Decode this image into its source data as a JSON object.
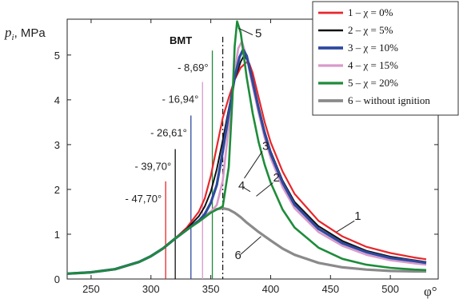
{
  "chart_data": {
    "type": "line",
    "xlabel": "φ°",
    "ylabel_main": "p",
    "ylabel_sub": "i",
    "ylabel_unit": ", MPa",
    "xlim": [
      230,
      540
    ],
    "ylim": [
      0,
      5.8
    ],
    "xticks": [
      250,
      300,
      350,
      400,
      450,
      500
    ],
    "yticks": [
      0,
      1,
      2,
      3,
      4,
      5
    ],
    "xtick_labels": [
      "250",
      "300",
      "350",
      "400",
      "450",
      "500"
    ],
    "ytick_labels": [
      "0",
      "1",
      "2",
      "3",
      "4",
      "5"
    ],
    "bmt_label": "BMT",
    "bmt_x": 360,
    "legend_position": "top-right",
    "series": [
      {
        "id": "1",
        "legend": "1 – χ = 0%",
        "color": "#e8262b",
        "x": [
          230,
          250,
          270,
          290,
          300,
          310,
          320,
          330,
          340,
          345,
          350,
          355,
          360,
          365,
          370,
          375,
          380,
          382,
          385,
          390,
          395,
          400,
          410,
          420,
          440,
          460,
          480,
          500,
          520,
          530
        ],
        "y": [
          0.12,
          0.15,
          0.22,
          0.38,
          0.51,
          0.68,
          0.9,
          1.15,
          1.5,
          1.8,
          2.3,
          2.95,
          3.6,
          4.05,
          4.45,
          4.72,
          4.84,
          4.82,
          4.6,
          4.05,
          3.5,
          3.05,
          2.4,
          1.9,
          1.3,
          0.95,
          0.72,
          0.58,
          0.48,
          0.44
        ]
      },
      {
        "id": "2",
        "legend": "2 – χ = 5%",
        "color": "#111111",
        "x": [
          230,
          250,
          270,
          290,
          300,
          310,
          320,
          330,
          340,
          345,
          350,
          355,
          360,
          365,
          370,
          375,
          378,
          382,
          385,
          390,
          395,
          400,
          410,
          420,
          440,
          460,
          480,
          500,
          520,
          530
        ],
        "y": [
          0.12,
          0.15,
          0.22,
          0.38,
          0.51,
          0.68,
          0.9,
          1.12,
          1.4,
          1.62,
          1.95,
          2.45,
          3.1,
          3.8,
          4.45,
          4.85,
          5.0,
          4.8,
          4.45,
          3.85,
          3.3,
          2.85,
          2.2,
          1.72,
          1.18,
          0.85,
          0.63,
          0.5,
          0.42,
          0.38
        ]
      },
      {
        "id": "3",
        "legend": "3 – χ = 10%",
        "color": "#2e4a9e",
        "x": [
          230,
          250,
          270,
          290,
          300,
          310,
          320,
          330,
          340,
          345,
          350,
          355,
          360,
          365,
          370,
          374,
          377,
          380,
          385,
          390,
          395,
          400,
          410,
          420,
          440,
          460,
          480,
          500,
          520,
          530
        ],
        "y": [
          0.12,
          0.15,
          0.22,
          0.38,
          0.51,
          0.68,
          0.9,
          1.1,
          1.3,
          1.45,
          1.7,
          2.1,
          2.85,
          3.7,
          4.5,
          4.95,
          5.12,
          4.98,
          4.4,
          3.8,
          3.25,
          2.8,
          2.15,
          1.66,
          1.12,
          0.8,
          0.6,
          0.47,
          0.4,
          0.36
        ]
      },
      {
        "id": "4",
        "legend": "4 – χ = 15%",
        "color": "#d99acb",
        "x": [
          230,
          250,
          270,
          290,
          300,
          310,
          320,
          330,
          340,
          345,
          350,
          355,
          360,
          365,
          370,
          373,
          376,
          380,
          385,
          390,
          395,
          400,
          410,
          420,
          440,
          460,
          480,
          500,
          520,
          530
        ],
        "y": [
          0.12,
          0.15,
          0.22,
          0.38,
          0.51,
          0.68,
          0.9,
          1.1,
          1.28,
          1.38,
          1.5,
          1.65,
          2.2,
          3.4,
          4.65,
          5.15,
          5.3,
          4.95,
          4.3,
          3.7,
          3.15,
          2.7,
          2.05,
          1.58,
          1.05,
          0.74,
          0.54,
          0.42,
          0.35,
          0.32
        ]
      },
      {
        "id": "5",
        "legend": "5 – χ = 20%",
        "color": "#1e8c3a",
        "x": [
          230,
          250,
          270,
          290,
          300,
          310,
          320,
          330,
          340,
          345,
          350,
          355,
          360,
          365,
          368,
          370,
          372,
          375,
          380,
          385,
          390,
          395,
          400,
          410,
          420,
          440,
          460,
          480,
          500,
          520,
          530
        ],
        "y": [
          0.12,
          0.15,
          0.22,
          0.38,
          0.51,
          0.68,
          0.9,
          1.1,
          1.28,
          1.38,
          1.48,
          1.55,
          1.62,
          2.5,
          4.0,
          5.2,
          5.75,
          5.5,
          4.5,
          3.7,
          3.05,
          2.55,
          2.15,
          1.55,
          1.15,
          0.7,
          0.45,
          0.32,
          0.25,
          0.21,
          0.2
        ]
      },
      {
        "id": "6",
        "legend": "6 – without ignition",
        "color": "#8a8a8a",
        "x": [
          230,
          250,
          270,
          290,
          300,
          310,
          320,
          330,
          340,
          345,
          350,
          355,
          360,
          365,
          370,
          375,
          380,
          390,
          400,
          410,
          420,
          440,
          460,
          480,
          500,
          520,
          530
        ],
        "y": [
          0.12,
          0.15,
          0.22,
          0.38,
          0.51,
          0.68,
          0.9,
          1.1,
          1.3,
          1.4,
          1.5,
          1.56,
          1.58,
          1.55,
          1.48,
          1.38,
          1.26,
          1.05,
          0.86,
          0.68,
          0.54,
          0.36,
          0.26,
          0.21,
          0.18,
          0.17,
          0.17
        ]
      }
    ],
    "ignition_markers": [
      {
        "label": "- 47,70°",
        "angle": 312.3,
        "height": 2.18,
        "color": "#e8262b"
      },
      {
        "label": "- 39,70°",
        "angle": 320.3,
        "height": 2.9,
        "color": "#111111"
      },
      {
        "label": "- 26,61°",
        "angle": 333.4,
        "height": 3.65,
        "color": "#2e4a9e"
      },
      {
        "label": "- 16,94°",
        "angle": 343.1,
        "height": 4.4,
        "color": "#d99acb"
      },
      {
        "label": "- 8,69°",
        "angle": 351.3,
        "height": 5.1,
        "color": "#1e8c3a"
      }
    ],
    "curve_labels": [
      {
        "text": "1",
        "x": 470,
        "y": 1.32
      },
      {
        "text": "2",
        "x": 402,
        "y": 2.18
      },
      {
        "text": "3",
        "x": 393,
        "y": 2.88
      },
      {
        "text": "4",
        "x": 373,
        "y": 2.0
      },
      {
        "text": "5",
        "x": 387,
        "y": 5.4
      },
      {
        "text": "6",
        "x": 370,
        "y": 0.45
      }
    ]
  }
}
